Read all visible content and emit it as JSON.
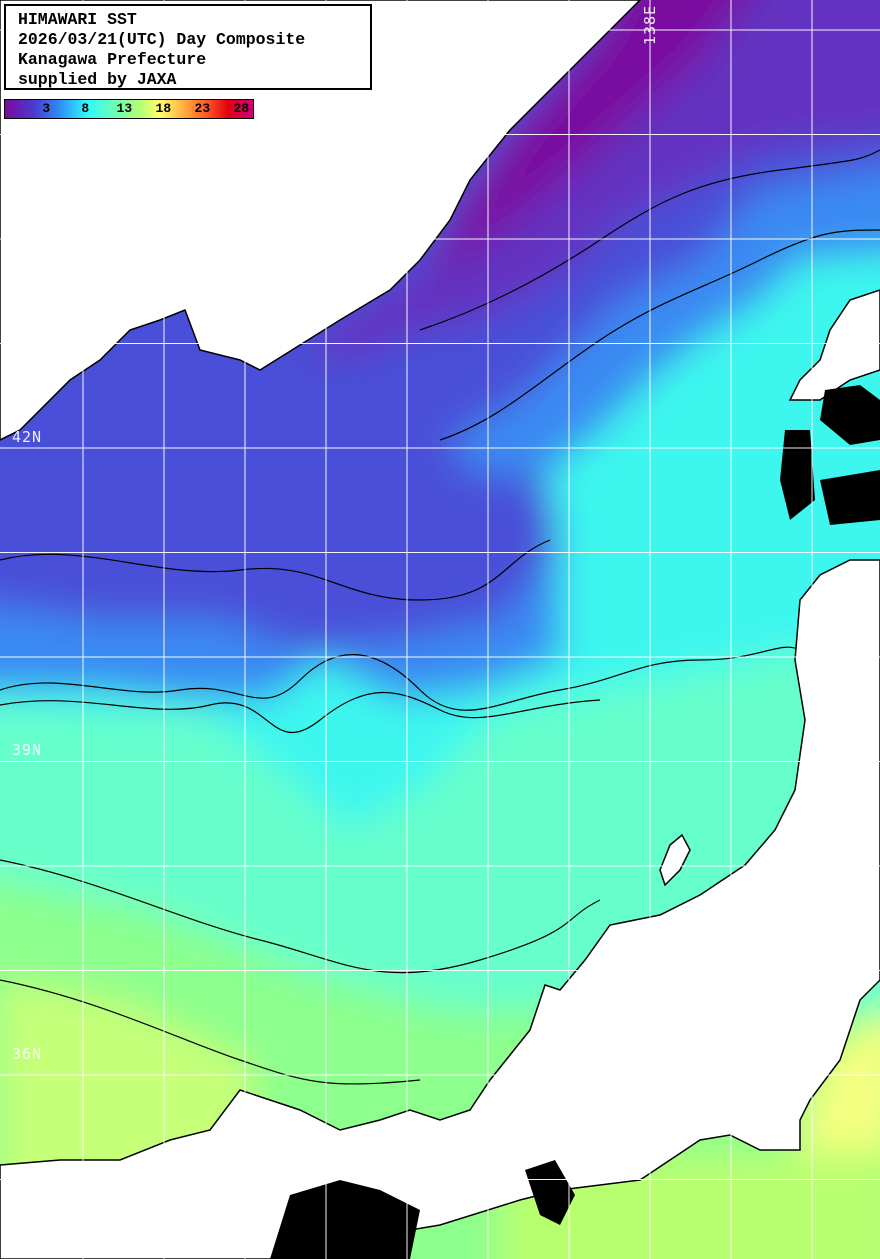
{
  "title": {
    "lines": [
      "HIMAWARI SST",
      "2026/03/21(UTC) Day Composite",
      "Kanagawa Prefecture",
      "supplied by JAXA"
    ]
  },
  "legend": {
    "ticks": [
      "3",
      "8",
      "13",
      "18",
      "23",
      "28"
    ],
    "tick_values": [
      3,
      8,
      13,
      18,
      23,
      28
    ],
    "unit_hint": "sea surface temperature"
  },
  "grid_labels": {
    "lat_42": "42N",
    "lat_39": "39N",
    "lat_36": "36N",
    "lon_138": "138E"
  },
  "colors": {
    "land": "#ffffff",
    "cloud_mask": "#000000",
    "coldest": "#7a0aa0",
    "cold": "#4a3cd0",
    "cool": "#30f8ff",
    "mild": "#70ffb0",
    "warm": "#ffff70",
    "hot": "#e00010"
  }
}
